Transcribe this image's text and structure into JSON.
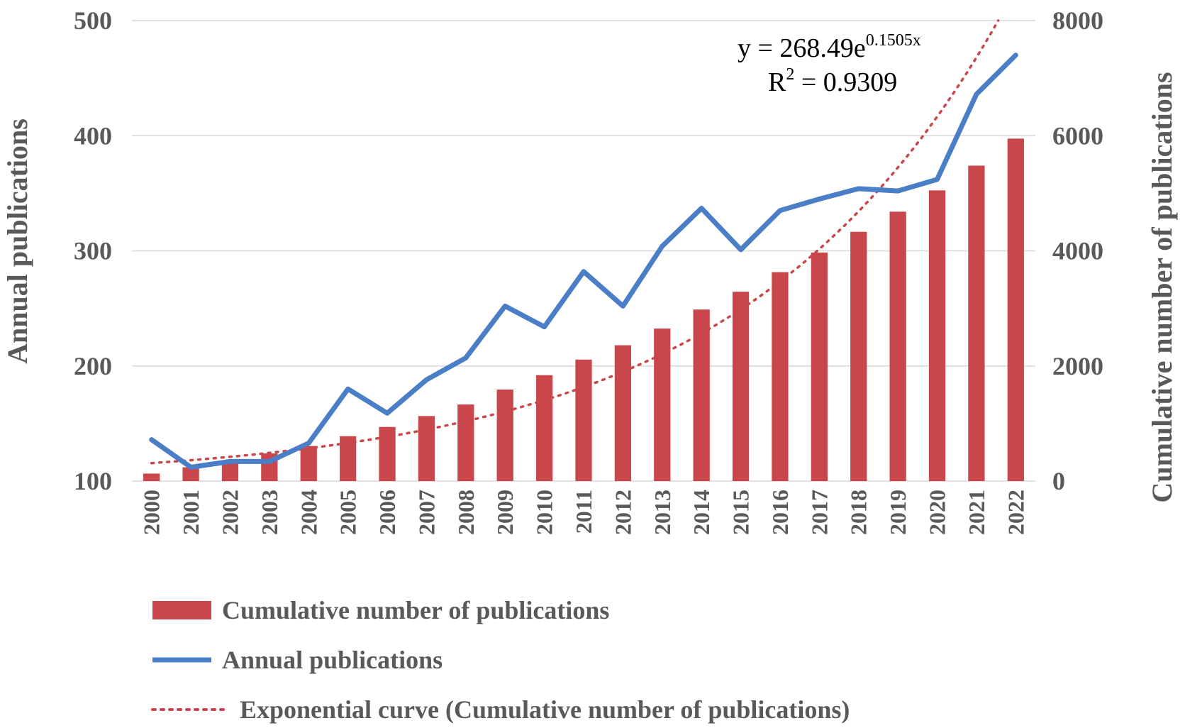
{
  "chart_data": {
    "type": "bar+line",
    "title": "",
    "categories": [
      "2000",
      "2001",
      "2002",
      "2003",
      "2004",
      "2005",
      "2006",
      "2007",
      "2008",
      "2009",
      "2010",
      "2011",
      "2012",
      "2013",
      "2014",
      "2015",
      "2016",
      "2017",
      "2018",
      "2019",
      "2020",
      "2021",
      "2022"
    ],
    "series": [
      {
        "name": "Cumulative number of publications",
        "type": "bar",
        "axis": "right",
        "color": "#c9474a",
        "values": [
          130,
          240,
          360,
          480,
          610,
          780,
          940,
          1130,
          1330,
          1590,
          1840,
          2110,
          2360,
          2650,
          2980,
          3290,
          3630,
          3970,
          4330,
          4680,
          5050,
          5480,
          5950
        ]
      },
      {
        "name": "Annual publications",
        "type": "line",
        "axis": "left",
        "color": "#4a7ec7",
        "values": [
          136,
          112,
          117,
          117,
          133,
          180,
          159,
          188,
          207,
          252,
          234,
          282,
          252,
          304,
          337,
          301,
          335,
          345,
          354,
          352,
          362,
          436,
          470
        ]
      },
      {
        "name": "Exponential curve (Cumulative number of publications)",
        "type": "trendline",
        "axis": "right",
        "color": "#c9474a",
        "model": "exponential",
        "a": 268.49,
        "b": 0.1505
      }
    ],
    "left_axis": {
      "label": "Annual publications",
      "ylim": [
        100,
        500
      ],
      "ticks": [
        "100",
        "200",
        "300",
        "400",
        "500"
      ]
    },
    "right_axis": {
      "label": "Cumulative number of publications",
      "ylim": [
        0,
        8000
      ],
      "ticks": [
        "0",
        "2000",
        "4000",
        "6000",
        "8000"
      ]
    },
    "annotation": {
      "eq_prefix": "y = 268.49e",
      "eq_exponent": "0.1505x",
      "r2_base": "R",
      "r2_sup": "2",
      "r2_value": " = 0.9309"
    },
    "legend_position": "bottom-left",
    "grid": true
  }
}
